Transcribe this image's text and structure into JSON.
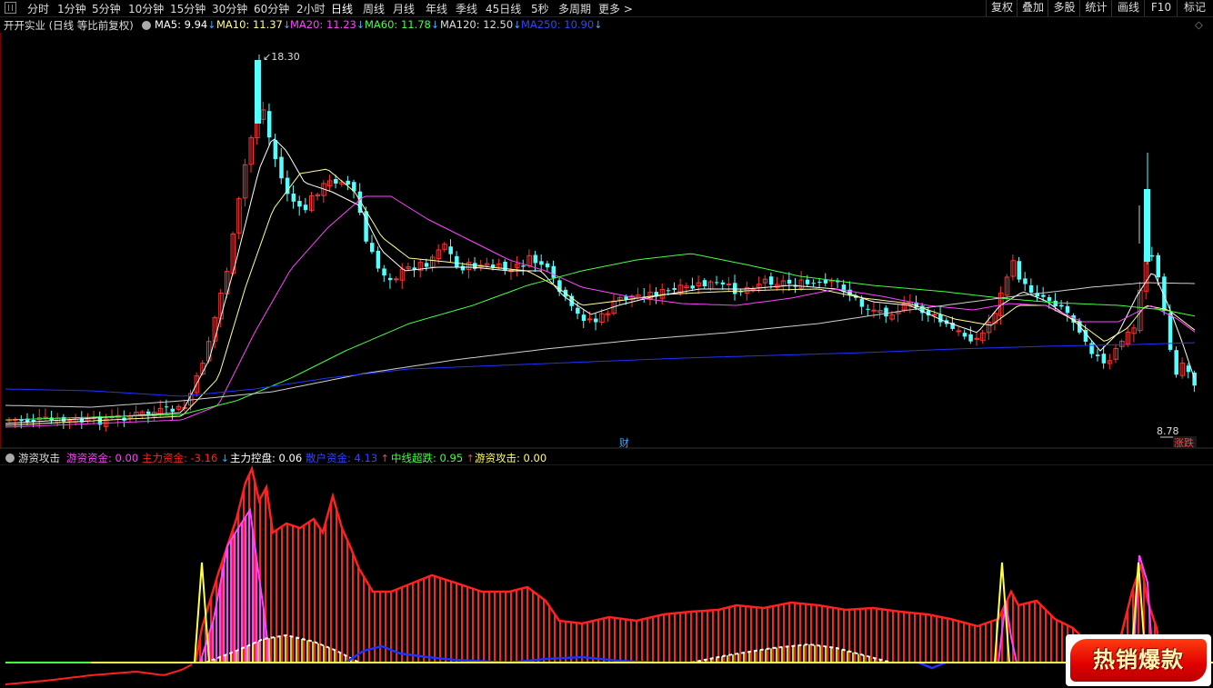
{
  "toolbar": {
    "tabs": [
      "分时",
      "1分钟",
      "5分钟",
      "10分钟",
      "15分钟",
      "30分钟",
      "60分钟",
      "2小时",
      "日线",
      "周线",
      "月线",
      "年线",
      "季线",
      "45日线",
      "5秒",
      "多周期",
      "更多 >"
    ],
    "active_tab": "日线",
    "right_buttons": [
      "复权",
      "叠加",
      "多股",
      "统计",
      "画线",
      "F10",
      "标记"
    ]
  },
  "main_info": {
    "title": "开开实业 (日线 等比前复权)",
    "items": [
      {
        "label": "MA5: 9.94",
        "arrow": "↓",
        "color": "#ffffff"
      },
      {
        "label": "MA10: 11.37",
        "arrow": "↓",
        "color": "#ffff88"
      },
      {
        "label": "MA20: 11.23",
        "arrow": "↓",
        "color": "#ff44ff"
      },
      {
        "label": "MA60: 11.78",
        "arrow": "↓",
        "color": "#44ff44"
      },
      {
        "label": "MA120: 12.50",
        "arrow": "↓",
        "color": "#dddddd"
      },
      {
        "label": "MA250: 10.90",
        "arrow": "↓",
        "color": "#3344ff"
      }
    ],
    "arrow_color": "#44aaff"
  },
  "main_chart": {
    "high_label": "18.30",
    "low_label": "8.78",
    "marker_cai": "财",
    "marker_zhangdie": "涨跌",
    "up_color": "#ff3232",
    "down_color": "#54ffff"
  },
  "sub_info": {
    "title": "游资攻击",
    "items": [
      {
        "label": "游资资金: 0.00",
        "arrow": "",
        "color": "#ff44ff"
      },
      {
        "label": "主力资金: -3.16",
        "arrow": "↓",
        "color": "#ff2222",
        "arrow_color": "#44aaff"
      },
      {
        "label": "主力控盘: 0.06",
        "arrow": "",
        "color": "#ffffff"
      },
      {
        "label": "散户资金: 4.13",
        "arrow": "↑",
        "color": "#3344ff",
        "arrow_color": "#ff4444"
      },
      {
        "label": "中线超跌: 0.95",
        "arrow": "↑",
        "color": "#44ff44",
        "arrow_color": "#ff4444"
      },
      {
        "label": "游资攻击: 0.00",
        "arrow": "",
        "color": "#ffff66"
      }
    ]
  },
  "badge": {
    "text": "热销爆款"
  },
  "colors": {
    "bg": "#000000",
    "grid": "#1e1e1e",
    "red": "#ff2020",
    "yellow": "#ffff44",
    "magenta": "#ff44ff",
    "blue": "#2233ff",
    "green": "#44ff44"
  }
}
